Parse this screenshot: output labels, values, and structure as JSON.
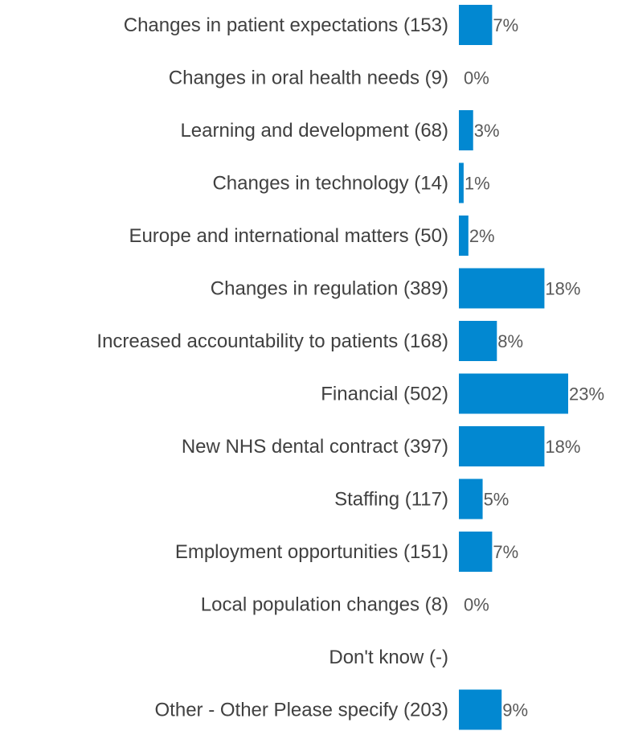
{
  "chart_data": {
    "type": "bar",
    "orientation": "horizontal",
    "bar_color": "#0288D1",
    "categories": [
      "Changes in patient expectations (153)",
      "Changes in oral health needs (9)",
      "Learning and development (68)",
      "Changes in technology (14)",
      "Europe and international matters (50)",
      "Changes in regulation (389)",
      "Increased accountability to patients (168)",
      "Financial (502)",
      "New NHS dental contract (397)",
      "Staffing (117)",
      "Employment opportunities (151)",
      "Local population changes (8)",
      "Don't know (-)",
      "Other - Other Please specify (203)"
    ],
    "values": [
      7,
      0,
      3,
      1,
      2,
      18,
      8,
      23,
      18,
      5,
      7,
      0,
      null,
      9
    ],
    "value_labels": [
      "7%",
      "0%",
      "3%",
      "1%",
      "2%",
      "18%",
      "8%",
      "23%",
      "18%",
      "5%",
      "7%",
      "0%",
      "",
      "9%"
    ],
    "xlim": [
      0,
      23
    ],
    "grid": false,
    "legend": "none"
  }
}
